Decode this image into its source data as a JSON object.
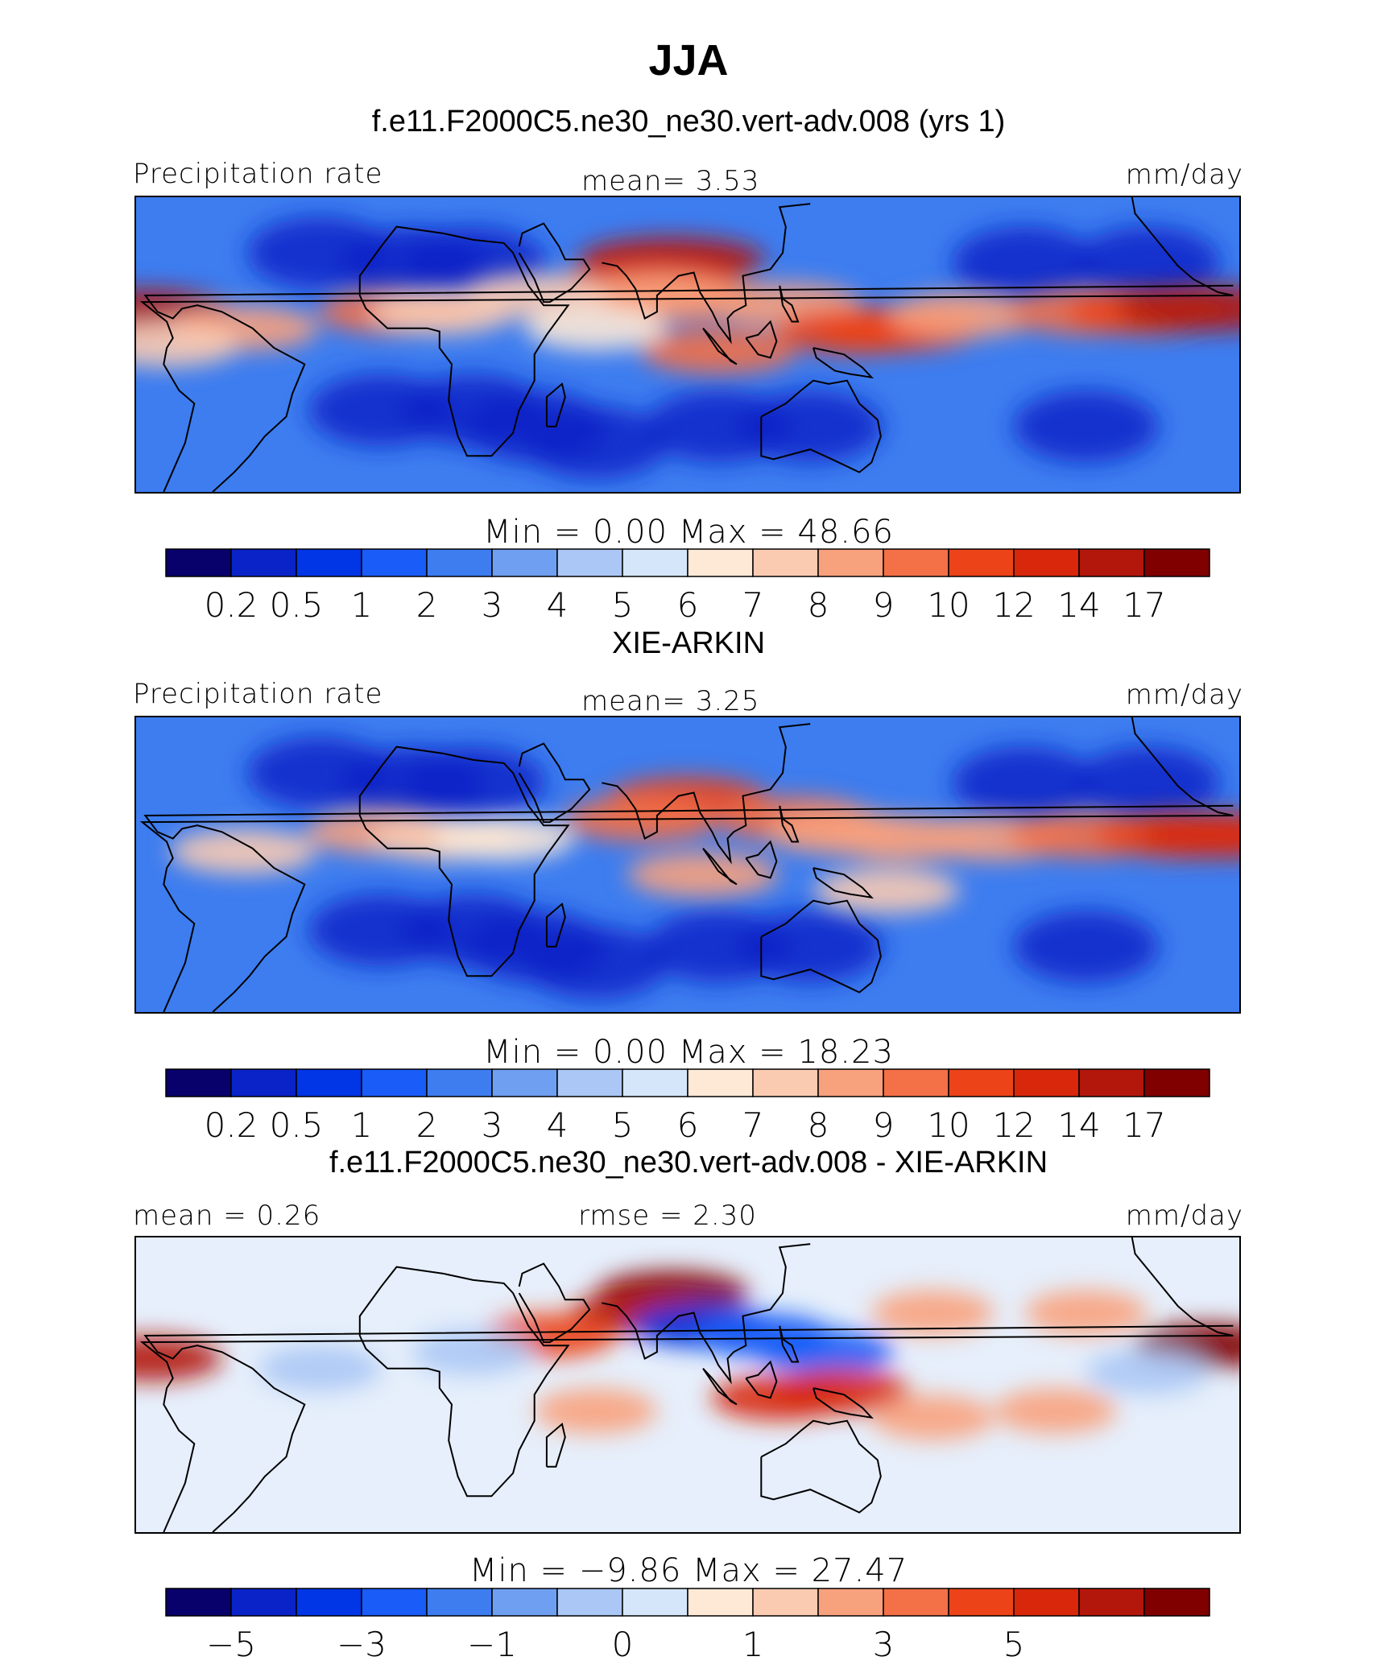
{
  "figure": {
    "title": "JJA",
    "colormap": [
      "#08006b",
      "#0a23c8",
      "#0036e6",
      "#1a5cf7",
      "#3d7df0",
      "#6f9ff0",
      "#aac7f5",
      "#d6e6fa",
      "#fde9d6",
      "#fbcbb1",
      "#f8a17d",
      "#f47047",
      "#ec4318",
      "#d8270a",
      "#b3170b",
      "#800000"
    ]
  },
  "chart_data": [
    {
      "type": "heatmap",
      "title": "f.e11.F2000C5.ne30_ne30.vert-adv.008 (yrs 1)",
      "left_label": "Precipitation rate",
      "center_label": "mean=   3.53",
      "units": "mm/day",
      "minmax_text": "Min  =     0.00  Max  =    48.66",
      "min": 0.0,
      "max": 48.66,
      "mean": 3.53,
      "levels": [
        "0.2",
        "0.5",
        "1",
        "2",
        "3",
        "4",
        "5",
        "6",
        "7",
        "8",
        "9",
        "10",
        "12",
        "14",
        "17"
      ],
      "blobs": [
        {
          "lon": 85,
          "lat": 26,
          "v": 15
        },
        {
          "lon": 78,
          "lat": 20,
          "v": 13
        },
        {
          "lon": 90,
          "lat": 14,
          "v": 9
        },
        {
          "lon": 80,
          "lat": 15,
          "v": 8
        },
        {
          "lon": 122,
          "lat": 12,
          "v": 8
        },
        {
          "lon": 145,
          "lat": 4,
          "v": 10
        },
        {
          "lon": 160,
          "lat": 5,
          "v": 10
        },
        {
          "lon": 180,
          "lat": 9,
          "v": 8
        },
        {
          "lon": -140,
          "lat": 10,
          "v": 9
        },
        {
          "lon": -120,
          "lat": 10,
          "v": 10
        },
        {
          "lon": -100,
          "lat": 11,
          "v": 15
        },
        {
          "lon": -88,
          "lat": 10,
          "v": 14
        },
        {
          "lon": -5,
          "lat": 10,
          "v": 9
        },
        {
          "lon": 10,
          "lat": 10,
          "v": 7
        },
        {
          "lon": 40,
          "lat": 15,
          "v": 7
        },
        {
          "lon": 100,
          "lat": -2,
          "v": 9
        },
        {
          "lon": -55,
          "lat": 5,
          "v": 8
        },
        {
          "lon": 60,
          "lat": 5,
          "v": 6
        },
        {
          "lon": -80,
          "lat": 0,
          "v": 7
        }
      ]
    },
    {
      "type": "heatmap",
      "title": "XIE-ARKIN",
      "left_label": "Precipitation rate",
      "center_label": "mean=   3.25",
      "units": "mm/day",
      "minmax_text": "Min  =     0.00  Max  =    18.23",
      "min": 0.0,
      "max": 18.23,
      "mean": 3.25,
      "levels": [
        "0.2",
        "0.5",
        "1",
        "2",
        "3",
        "4",
        "5",
        "6",
        "7",
        "8",
        "9",
        "10",
        "12",
        "14",
        "17"
      ],
      "blobs": [
        {
          "lon": 90,
          "lat": 20,
          "v": 10
        },
        {
          "lon": 75,
          "lat": 14,
          "v": 9
        },
        {
          "lon": 125,
          "lat": 14,
          "v": 9
        },
        {
          "lon": 140,
          "lat": 10,
          "v": 8
        },
        {
          "lon": 160,
          "lat": 8,
          "v": 8
        },
        {
          "lon": -170,
          "lat": 8,
          "v": 8
        },
        {
          "lon": -140,
          "lat": 9,
          "v": 9
        },
        {
          "lon": -110,
          "lat": 9,
          "v": 11
        },
        {
          "lon": -95,
          "lat": 9,
          "v": 12
        },
        {
          "lon": -10,
          "lat": 10,
          "v": 8
        },
        {
          "lon": 10,
          "lat": 8,
          "v": 7
        },
        {
          "lon": 30,
          "lat": 8,
          "v": 6
        },
        {
          "lon": 95,
          "lat": -3,
          "v": 8
        },
        {
          "lon": 155,
          "lat": -8,
          "v": 7
        },
        {
          "lon": -55,
          "lat": 4,
          "v": 7
        }
      ]
    },
    {
      "type": "heatmap",
      "title": "f.e11.F2000C5.ne30_ne30.vert-adv.008 - XIE-ARKIN",
      "left_label": "mean  =    0.26",
      "center_label": "rmse  =    2.30",
      "units": "mm/day",
      "minmax_text": "Min  =   −9.86  Max  =    27.47",
      "min": -9.86,
      "max": 27.47,
      "mean": 0.26,
      "rmse": 2.3,
      "levels": [
        "−5",
        "−3",
        "−1",
        "0",
        "1",
        "3",
        "5"
      ],
      "level_positions": [
        1,
        3,
        5,
        7,
        9,
        11,
        13
      ],
      "blobs": [
        {
          "lon": 85,
          "lat": 28,
          "v": 8
        },
        {
          "lon": 75,
          "lat": 22,
          "v": 6
        },
        {
          "lon": 95,
          "lat": 18,
          "v": -6
        },
        {
          "lon": 115,
          "lat": 15,
          "v": -5
        },
        {
          "lon": 135,
          "lat": 10,
          "v": -5
        },
        {
          "lon": 140,
          "lat": -2,
          "v": 5
        },
        {
          "lon": 120,
          "lat": -4,
          "v": 5
        },
        {
          "lon": -100,
          "lat": 12,
          "v": 7
        },
        {
          "lon": -85,
          "lat": 8,
          "v": 6
        },
        {
          "lon": -140,
          "lat": 22,
          "v": 2
        },
        {
          "lon": 170,
          "lat": 22,
          "v": 2
        },
        {
          "lon": 45,
          "lat": 15,
          "v": 4
        },
        {
          "lon": 20,
          "lat": 10,
          "v": -2
        },
        {
          "lon": -30,
          "lat": 5,
          "v": -2
        },
        {
          "lon": -120,
          "lat": 4,
          "v": -2
        },
        {
          "lon": -150,
          "lat": -8,
          "v": 2
        },
        {
          "lon": 170,
          "lat": -10,
          "v": 2
        },
        {
          "lon": 60,
          "lat": -8,
          "v": 2
        }
      ]
    }
  ]
}
